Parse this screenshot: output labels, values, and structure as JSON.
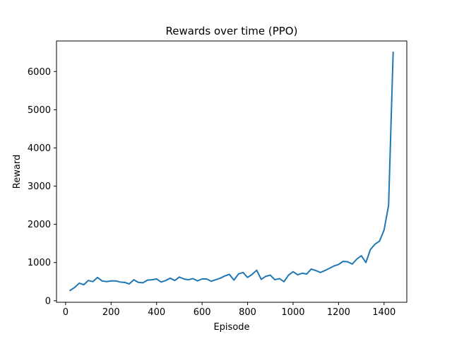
{
  "chart_data": {
    "type": "line",
    "title": "Rewards over time (PPO)",
    "xlabel": "Episode",
    "ylabel": "Reward",
    "xlim": [
      -40,
      1500
    ],
    "ylim": [
      -40,
      6800
    ],
    "x_ticks": [
      0,
      200,
      400,
      600,
      800,
      1000,
      1200,
      1400
    ],
    "y_ticks": [
      0,
      1000,
      2000,
      3000,
      4000,
      5000,
      6000
    ],
    "grid": false,
    "legend": "none",
    "series": [
      {
        "color": "#1f77b4",
        "x": [
          20,
          40,
          60,
          80,
          100,
          120,
          140,
          160,
          180,
          200,
          220,
          240,
          260,
          280,
          300,
          320,
          340,
          360,
          380,
          400,
          420,
          440,
          460,
          480,
          500,
          520,
          540,
          560,
          580,
          600,
          620,
          640,
          660,
          680,
          700,
          720,
          740,
          760,
          780,
          800,
          820,
          840,
          860,
          880,
          900,
          920,
          940,
          960,
          980,
          1000,
          1020,
          1040,
          1060,
          1080,
          1100,
          1120,
          1140,
          1160,
          1180,
          1200,
          1220,
          1240,
          1260,
          1280,
          1300,
          1320,
          1340,
          1360,
          1380,
          1400,
          1420,
          1440
        ],
        "y": [
          270,
          350,
          460,
          420,
          530,
          500,
          610,
          520,
          500,
          520,
          520,
          490,
          480,
          440,
          550,
          480,
          470,
          540,
          550,
          570,
          490,
          530,
          590,
          530,
          620,
          570,
          550,
          580,
          520,
          570,
          570,
          510,
          550,
          590,
          650,
          690,
          540,
          700,
          740,
          610,
          690,
          800,
          560,
          640,
          670,
          550,
          580,
          500,
          670,
          760,
          680,
          720,
          700,
          830,
          790,
          740,
          790,
          850,
          910,
          950,
          1030,
          1020,
          960,
          1090,
          1180,
          1000,
          1340,
          1480,
          1560,
          1850,
          2500,
          6500
        ]
      }
    ]
  }
}
